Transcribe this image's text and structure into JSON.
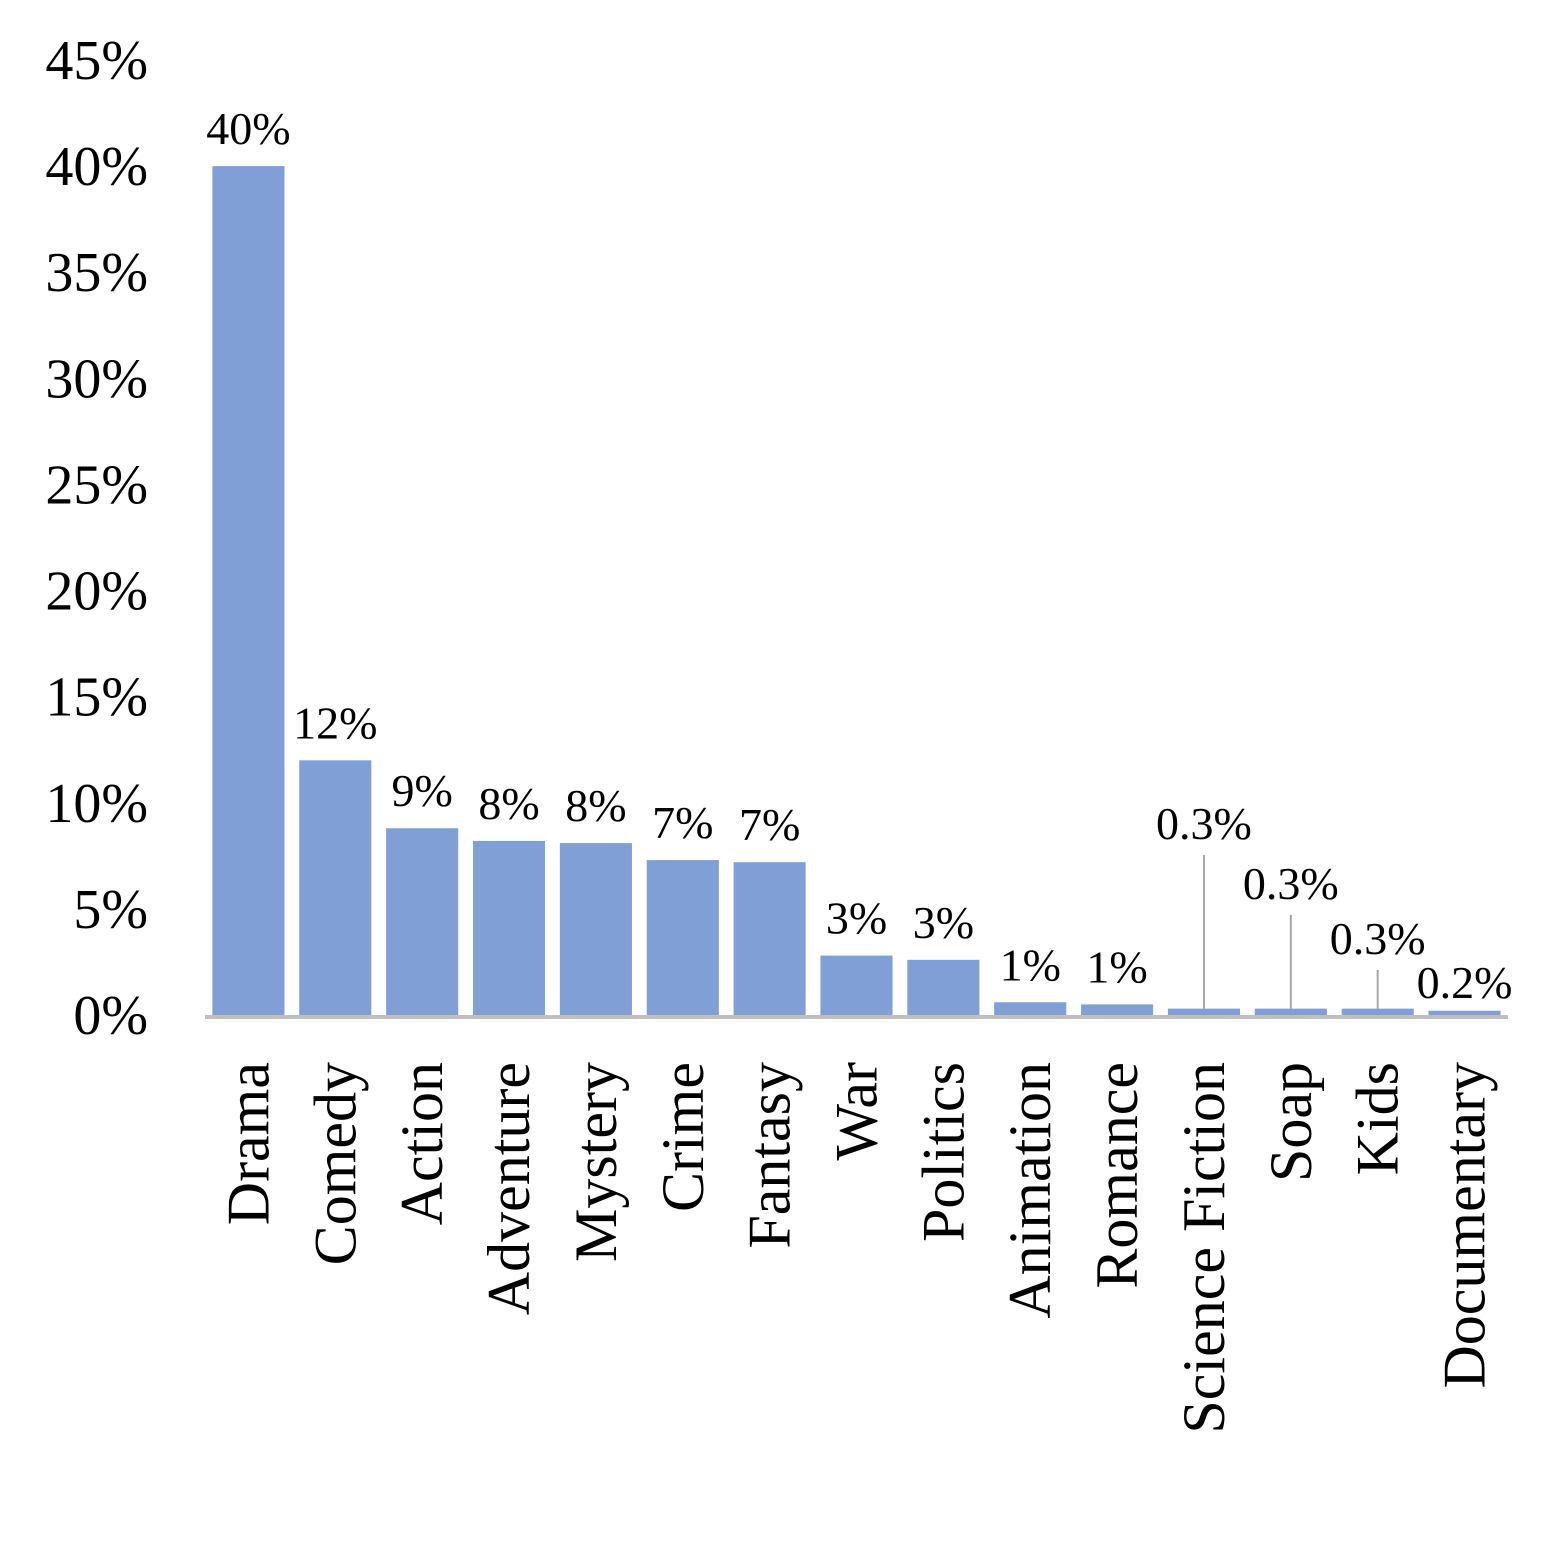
{
  "chart_data": {
    "type": "bar",
    "title": "",
    "xlabel": "",
    "ylabel": "",
    "ylim": [
      0,
      0.45
    ],
    "yticks": [
      0,
      0.05,
      0.1,
      0.15,
      0.2,
      0.25,
      0.3,
      0.35,
      0.4,
      0.45
    ],
    "ytick_labels": [
      "0%",
      "5%",
      "10%",
      "15%",
      "20%",
      "25%",
      "30%",
      "35%",
      "40%",
      "45%"
    ],
    "grid": false,
    "legend": "none",
    "categories": [
      "Drama",
      "Comedy",
      "Action",
      "Adventure",
      "Mystery",
      "Crime",
      "Fantasy",
      "War",
      "Politics",
      "Animation",
      "Romance",
      "Science Fiction",
      "Soap",
      "Kids",
      "Documentary"
    ],
    "values": [
      0.4,
      0.12,
      0.088,
      0.082,
      0.081,
      0.073,
      0.072,
      0.028,
      0.026,
      0.006,
      0.005,
      0.003,
      0.003,
      0.003,
      0.002
    ],
    "data_labels": [
      "40%",
      "12%",
      "9%",
      "8%",
      "8%",
      "7%",
      "7%",
      "3%",
      "3%",
      "1%",
      "1%",
      "0.3%",
      "0.3%",
      "0.3%",
      "0.2%"
    ],
    "leader_lines": [
      false,
      false,
      false,
      false,
      false,
      false,
      false,
      false,
      false,
      false,
      false,
      true,
      true,
      true,
      false
    ],
    "colors": {
      "bar": "#7f9fd6",
      "axis": "#bfbfbf",
      "leader": "#a6a6a6",
      "text": "#000000"
    }
  }
}
